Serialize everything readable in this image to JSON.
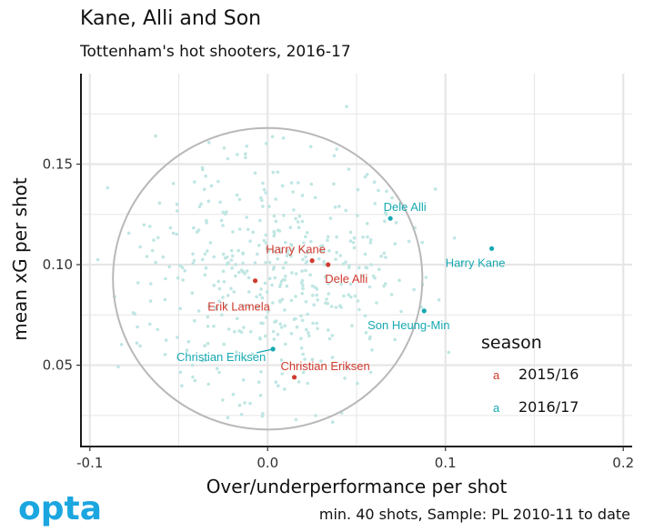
{
  "chart_data": {
    "type": "scatter",
    "title": "Kane, Alli and Son",
    "subtitle": "Tottenham's hot shooters, 2016-17",
    "xlabel": "Over/underperformance per shot",
    "ylabel": "mean xG per shot",
    "xlim": [
      -0.105,
      0.205
    ],
    "ylim": [
      0.01,
      0.195
    ],
    "x_ticks": [
      -0.1,
      0.0,
      0.1,
      0.2
    ],
    "x_tick_labels": [
      "-0.1",
      "0.0",
      "0.1",
      "0.2"
    ],
    "y_ticks": [
      0.05,
      0.1,
      0.15
    ],
    "y_tick_labels": [
      "0.05",
      "0.10",
      "0.15"
    ],
    "grid": true,
    "reference_ellipse": {
      "center": [
        0.0,
        0.093
      ],
      "radius_x": 0.087,
      "radius_y": 0.075
    },
    "legend": {
      "title": "season",
      "position": "right",
      "entries": [
        {
          "key": "a",
          "label": "2015/16",
          "color": "#d03a2e"
        },
        {
          "key": "a",
          "label": "2016/17",
          "color": "#17a9b2"
        }
      ]
    },
    "highlighted": [
      {
        "name": "Harry Kane",
        "season": "2015/16",
        "x": 0.025,
        "y": 0.102
      },
      {
        "name": "Dele Alli",
        "season": "2015/16",
        "x": 0.034,
        "y": 0.1
      },
      {
        "name": "Erik Lamela",
        "season": "2015/16",
        "x": -0.007,
        "y": 0.092
      },
      {
        "name": "Christian Eriksen",
        "season": "2015/16",
        "x": 0.015,
        "y": 0.044
      },
      {
        "name": "Dele Alli",
        "season": "2016/17",
        "x": 0.069,
        "y": 0.123
      },
      {
        "name": "Harry Kane",
        "season": "2016/17",
        "x": 0.126,
        "y": 0.108
      },
      {
        "name": "Son Heung-Min",
        "season": "2016/17",
        "x": 0.088,
        "y": 0.077
      },
      {
        "name": "Christian Eriksen",
        "season": "2016/17",
        "x": 0.003,
        "y": 0.058
      }
    ],
    "background_points": "approx. 450 other players (pale dots), concentrated around x 0.0, y 0.09",
    "caption": "min. 40 shots, Sample: PL 2010-11 to date",
    "colors": {
      "s2015": "#d03a2e",
      "s2016": "#17a9b2",
      "background_point": "#bfe6e3",
      "ellipse": "#b8b8b8",
      "grid": "#e6e6e6"
    }
  },
  "branding": {
    "logo_text": "opta",
    "logo_color": "#1ba6e0"
  }
}
